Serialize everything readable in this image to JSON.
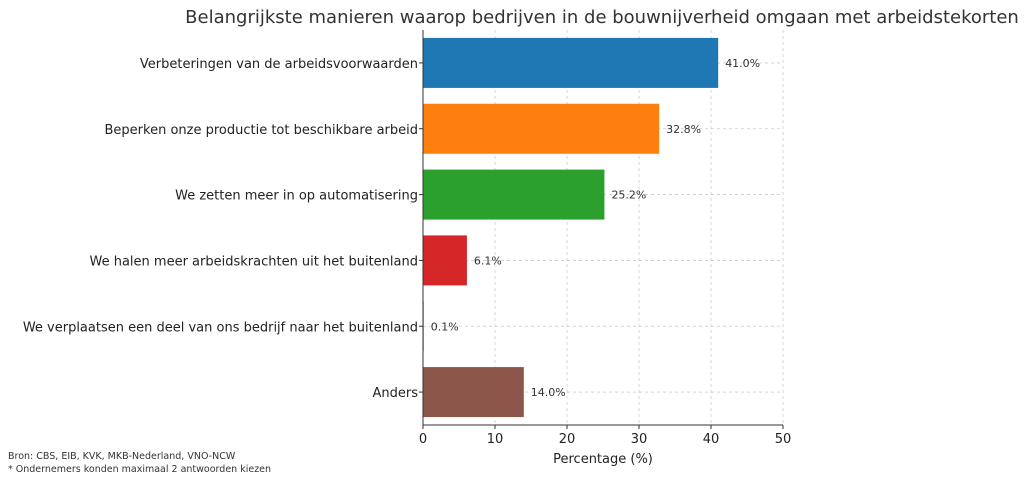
{
  "chart_data": {
    "type": "bar",
    "orientation": "horizontal",
    "title": "Belangrijkste manieren waarop bedrijven in de bouwnijverheid omgaan met arbeidstekorten",
    "xlabel": "Percentage (%)",
    "ylabel": "",
    "xlim": [
      0,
      50
    ],
    "xticks": [
      0,
      10,
      20,
      30,
      40,
      50
    ],
    "grid": true,
    "categories": [
      "Verbeteringen van de arbeidsvoorwaarden",
      "Beperken onze productie tot beschikbare arbeid",
      "We zetten meer in op automatisering",
      "We halen meer arbeidskrachten uit het buitenland",
      "We verplaatsen een deel van ons bedrijf naar het buitenland",
      "Anders"
    ],
    "values": [
      41.0,
      32.8,
      25.2,
      6.1,
      0.1,
      14.0
    ],
    "data_labels": [
      "41.0%",
      "32.8%",
      "25.2%",
      "6.1%",
      "0.1%",
      "14.0%"
    ],
    "colors": [
      "#1f77b4",
      "#ff7f0e",
      "#2ca02c",
      "#d62728",
      "#9467bd",
      "#8c564b"
    ]
  },
  "footnotes": {
    "source": "Bron: CBS, EIB, KVK, MKB-Nederland, VNO-NCW",
    "note": "* Ondernemers konden maximaal 2 antwoorden kiezen"
  }
}
